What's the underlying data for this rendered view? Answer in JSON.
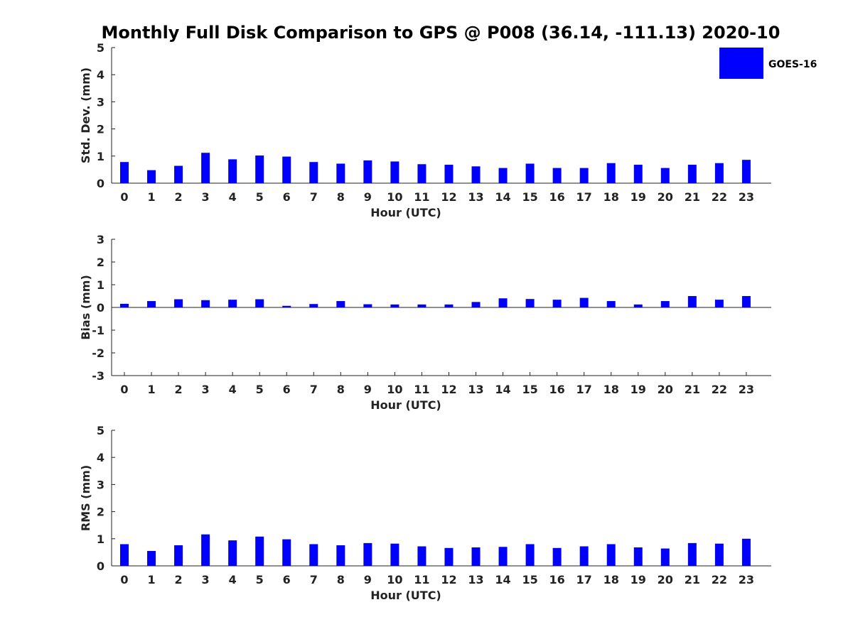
{
  "title": "Monthly Full Disk Comparison to GPS @ P008 (36.14, -111.13) 2020-10",
  "legend": {
    "label": "GOES-16",
    "color": "#0000ff"
  },
  "chart_data": [
    {
      "type": "bar",
      "ylabel": "Std. Dev. (mm)",
      "xlabel": "Hour (UTC)",
      "ylim": [
        0,
        5
      ],
      "yticks": [
        0,
        1,
        2,
        3,
        4,
        5
      ],
      "categories": [
        "0",
        "1",
        "2",
        "3",
        "4",
        "5",
        "6",
        "7",
        "8",
        "9",
        "10",
        "11",
        "12",
        "13",
        "14",
        "15",
        "16",
        "17",
        "18",
        "19",
        "20",
        "21",
        "22",
        "23"
      ],
      "series": [
        {
          "name": "GOES-16",
          "color": "#0000ff",
          "values": [
            0.78,
            0.48,
            0.64,
            1.12,
            0.88,
            1.02,
            0.98,
            0.78,
            0.72,
            0.84,
            0.8,
            0.7,
            0.68,
            0.62,
            0.56,
            0.72,
            0.56,
            0.56,
            0.74,
            0.68,
            0.56,
            0.68,
            0.74,
            0.86
          ]
        }
      ]
    },
    {
      "type": "bar",
      "ylabel": "Bias (mm)",
      "xlabel": "Hour (UTC)",
      "ylim": [
        -3,
        3
      ],
      "yticks": [
        -3,
        -2,
        -1,
        0,
        1,
        2,
        3
      ],
      "categories": [
        "0",
        "1",
        "2",
        "3",
        "4",
        "5",
        "6",
        "7",
        "8",
        "9",
        "10",
        "11",
        "12",
        "13",
        "14",
        "15",
        "16",
        "17",
        "18",
        "19",
        "20",
        "21",
        "22",
        "23"
      ],
      "series": [
        {
          "name": "GOES-16",
          "color": "#0000ff",
          "values": [
            0.16,
            0.28,
            0.36,
            0.32,
            0.34,
            0.36,
            0.07,
            0.15,
            0.28,
            0.14,
            0.13,
            0.13,
            0.13,
            0.24,
            0.4,
            0.37,
            0.34,
            0.42,
            0.28,
            0.13,
            0.28,
            0.5,
            0.34,
            0.5
          ]
        }
      ]
    },
    {
      "type": "bar",
      "ylabel": "RMS (mm)",
      "xlabel": "Hour (UTC)",
      "ylim": [
        0,
        5
      ],
      "yticks": [
        0,
        1,
        2,
        3,
        4,
        5
      ],
      "categories": [
        "0",
        "1",
        "2",
        "3",
        "4",
        "5",
        "6",
        "7",
        "8",
        "9",
        "10",
        "11",
        "12",
        "13",
        "14",
        "15",
        "16",
        "17",
        "18",
        "19",
        "20",
        "21",
        "22",
        "23"
      ],
      "series": [
        {
          "name": "GOES-16",
          "color": "#0000ff",
          "values": [
            0.8,
            0.55,
            0.76,
            1.16,
            0.94,
            1.08,
            0.98,
            0.8,
            0.76,
            0.84,
            0.82,
            0.72,
            0.66,
            0.68,
            0.7,
            0.8,
            0.66,
            0.72,
            0.8,
            0.68,
            0.64,
            0.84,
            0.82,
            1.0
          ]
        }
      ]
    }
  ]
}
